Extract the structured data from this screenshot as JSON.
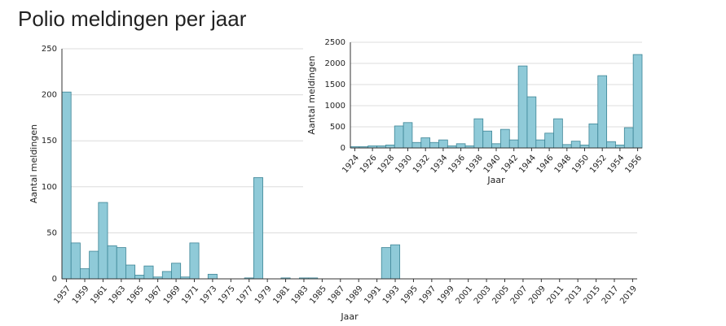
{
  "chart_data": [
    {
      "type": "bar",
      "title": "Polio meldingen per jaar",
      "x_label": "Jaar",
      "y_label": "Aantal meldingen",
      "categories": [
        "1957",
        null,
        "1959",
        null,
        "1961",
        null,
        "1963",
        null,
        "1965",
        null,
        "1967",
        null,
        "1969",
        null,
        "1971",
        null,
        "1973",
        null,
        "1975",
        null,
        "1977",
        null,
        "1979",
        null,
        "1981",
        null,
        "1983",
        null,
        "1985",
        null,
        "1987",
        null,
        "1989",
        null,
        "1991",
        null,
        "1993",
        null,
        "1995",
        null,
        "1997",
        null,
        "1999",
        null,
        "2001",
        null,
        "2003",
        null,
        "2005",
        null,
        "2007",
        null,
        "2009",
        null,
        "2011",
        null,
        "2013",
        null,
        "2015",
        null,
        "2017",
        null,
        "2019"
      ],
      "values": [
        203,
        39,
        11,
        30,
        83,
        36,
        34,
        15,
        4,
        14,
        2,
        8,
        17,
        2,
        39,
        0,
        5,
        0,
        0,
        0,
        1,
        110,
        0,
        0,
        1,
        0,
        1,
        1,
        0,
        0,
        0,
        0,
        0,
        0,
        0,
        34,
        37,
        0,
        0,
        0,
        0,
        0,
        0,
        0,
        0,
        0,
        0,
        0,
        0,
        0,
        0,
        0,
        0,
        0,
        0,
        0,
        0,
        0,
        0,
        0,
        0,
        0,
        0
      ],
      "color": "#8fcad8",
      "ylim": [
        0,
        250
      ],
      "yticks": [
        0,
        50,
        100,
        150,
        200,
        250
      ],
      "grid": true
    },
    {
      "type": "bar",
      "x_label": "Jaar",
      "y_label": "Aantal meldingen",
      "categories": [
        "1924",
        null,
        "1926",
        null,
        "1928",
        null,
        "1930",
        null,
        "1932",
        null,
        "1934",
        null,
        "1936",
        null,
        "1938",
        null,
        "1940",
        null,
        "1942",
        null,
        "1944",
        null,
        "1946",
        null,
        "1948",
        null,
        "1950",
        null,
        "1952",
        null,
        "1954",
        null,
        "1956"
      ],
      "values": [
        30,
        30,
        50,
        50,
        70,
        520,
        600,
        130,
        240,
        130,
        190,
        50,
        100,
        50,
        690,
        400,
        100,
        440,
        190,
        1940,
        1210,
        190,
        350,
        690,
        80,
        160,
        70,
        570,
        1710,
        150,
        70,
        480,
        2210
      ],
      "color": "#8fcad8",
      "ylim": [
        0,
        2500
      ],
      "yticks": [
        0,
        500,
        1000,
        1500,
        2000,
        2500
      ],
      "grid": true
    }
  ]
}
